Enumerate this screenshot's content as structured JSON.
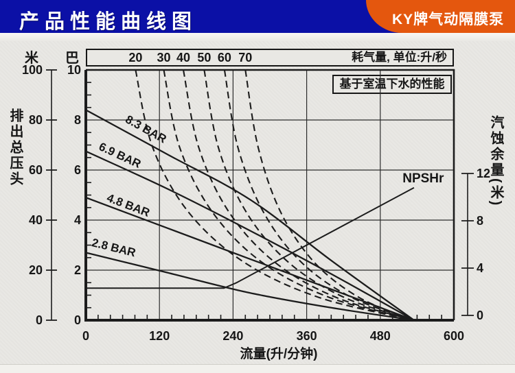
{
  "header": {
    "title": "产品性能曲线图",
    "product": "KY牌气动隔膜泵"
  },
  "colors": {
    "header_bg": "#0b10a6",
    "badge_bg": "#e4570e",
    "page_bg": "#e9e8e4",
    "line": "#1c1c1c"
  },
  "chart_data": {
    "type": "line",
    "note_box": "基于室温下水的性能",
    "top_axis": {
      "label": "耗气量, 单位:升/秒",
      "ticks": [
        "20",
        "30",
        "40",
        "50",
        "60",
        "70"
      ]
    },
    "x_axis": {
      "label": "流量(升/分钟)",
      "ticks": [
        0,
        120,
        240,
        360,
        480,
        600
      ],
      "range": [
        0,
        600
      ],
      "minor_step": 20
    },
    "y_axis_m": {
      "header": "米",
      "label": "排出总压头",
      "ticks": [
        100,
        80,
        60,
        40,
        20,
        0
      ],
      "range": [
        0,
        100
      ]
    },
    "y_axis_bar": {
      "header": "巴",
      "ticks": [
        10,
        8,
        6,
        4,
        2,
        0
      ],
      "range": [
        0,
        10
      ],
      "minor_step": 0.5
    },
    "right_axis": {
      "label": "汽蚀余量(米)",
      "ticks": [
        12,
        8,
        4,
        0
      ],
      "range": [
        0,
        12
      ]
    },
    "grid": {
      "x_lines": [
        120,
        240,
        360,
        480
      ],
      "y_lines": [
        2,
        4,
        6,
        8
      ]
    },
    "convergence_flow": 535,
    "pressure_curves": [
      {
        "label": "8.3 BAR",
        "points": [
          [
            0,
            8.4
          ],
          [
            135,
            6.6
          ],
          [
            269,
            4.8
          ],
          [
            402,
            2.35
          ],
          [
            535,
            0
          ]
        ],
        "label_pos": [
          95,
          7.5
        ],
        "label_angle": 29
      },
      {
        "label": "6.9 BAR",
        "points": [
          [
            0,
            6.75
          ],
          [
            133,
            5.25
          ],
          [
            266,
            3.6
          ],
          [
            400,
            1.85
          ],
          [
            535,
            0
          ]
        ],
        "label_pos": [
          53,
          6.45
        ],
        "label_angle": 25
      },
      {
        "label": "4.8 BAR",
        "points": [
          [
            0,
            4.9
          ],
          [
            133,
            3.68
          ],
          [
            268,
            2.44
          ],
          [
            402,
            1.22
          ],
          [
            535,
            0
          ]
        ],
        "label_pos": [
          67,
          4.45
        ],
        "label_angle": 21
      },
      {
        "label": "2.8 BAR",
        "points": [
          [
            0,
            2.7
          ],
          [
            133,
            1.9
          ],
          [
            266,
            1.1
          ],
          [
            400,
            0.5
          ],
          [
            535,
            0
          ]
        ],
        "label_pos": [
          44,
          2.75
        ],
        "label_angle": 14
      }
    ],
    "air_curves": [
      {
        "label": "20",
        "points": [
          [
            81,
            10
          ],
          [
            109,
            6.9
          ],
          [
            168,
            4.3
          ],
          [
            259,
            2.3
          ],
          [
            381,
            0.9
          ],
          [
            535,
            0
          ]
        ]
      },
      {
        "label": "30",
        "points": [
          [
            127,
            10
          ],
          [
            153,
            6.9
          ],
          [
            207,
            4.3
          ],
          [
            288,
            2.3
          ],
          [
            398,
            0.9
          ],
          [
            535,
            0
          ]
        ]
      },
      {
        "label": "40",
        "points": [
          [
            159,
            10
          ],
          [
            184,
            6.9
          ],
          [
            234,
            4.3
          ],
          [
            309,
            2.3
          ],
          [
            409,
            0.9
          ],
          [
            535,
            0
          ]
        ]
      },
      {
        "label": "50",
        "points": [
          [
            193,
            10
          ],
          [
            216,
            6.9
          ],
          [
            262,
            4.3
          ],
          [
            331,
            2.3
          ],
          [
            422,
            0.9
          ],
          [
            535,
            0
          ]
        ]
      },
      {
        "label": "60",
        "points": [
          [
            226,
            10
          ],
          [
            248,
            6.9
          ],
          [
            290,
            4.3
          ],
          [
            352,
            2.3
          ],
          [
            434,
            0.9
          ],
          [
            535,
            0
          ]
        ]
      },
      {
        "label": "70",
        "points": [
          [
            260,
            10
          ],
          [
            281,
            6.9
          ],
          [
            318,
            4.3
          ],
          [
            373,
            2.3
          ],
          [
            446,
            0.9
          ],
          [
            535,
            0
          ]
        ]
      }
    ],
    "npshr": {
      "label": "NPSHr",
      "points": [
        [
          0,
          2.3
        ],
        [
          225,
          2.3
        ],
        [
          245,
          2.75
        ],
        [
          535,
          10.8
        ]
      ],
      "label_pos": [
        550,
        11.6
      ]
    }
  }
}
